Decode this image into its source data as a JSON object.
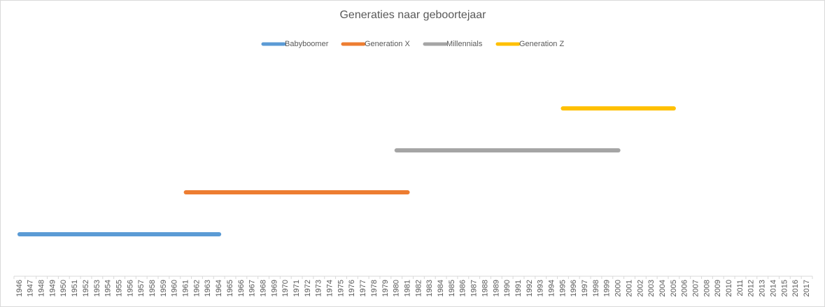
{
  "chart_data": {
    "type": "line",
    "title": "Generaties naar geboortejaar",
    "categories": [
      "1946",
      "1947",
      "1948",
      "1949",
      "1950",
      "1951",
      "1952",
      "1953",
      "1954",
      "1955",
      "1956",
      "1957",
      "1958",
      "1959",
      "1960",
      "1961",
      "1962",
      "1963",
      "1964",
      "1965",
      "1966",
      "1967",
      "1968",
      "1969",
      "1970",
      "1971",
      "1972",
      "1973",
      "1974",
      "1975",
      "1976",
      "1977",
      "1978",
      "1979",
      "1980",
      "1981",
      "1982",
      "1983",
      "1984",
      "1985",
      "1986",
      "1987",
      "1988",
      "1989",
      "1990",
      "1991",
      "1992",
      "1993",
      "1994",
      "1995",
      "1996",
      "1997",
      "1998",
      "1999",
      "2000",
      "2001",
      "2002",
      "2003",
      "2004",
      "2005",
      "2006",
      "2007",
      "2008",
      "2009",
      "2010",
      "2011",
      "2012",
      "2013",
      "2014",
      "2015",
      "2016",
      "2017"
    ],
    "series": [
      {
        "name": "Babyboomer",
        "color": "#5b9bd5",
        "values": [
          1,
          1,
          1,
          1,
          1,
          1,
          1,
          1,
          1,
          1,
          1,
          1,
          1,
          1,
          1,
          1,
          1,
          1,
          1,
          null,
          null,
          null,
          null,
          null,
          null,
          null,
          null,
          null,
          null,
          null,
          null,
          null,
          null,
          null,
          null,
          null,
          null,
          null,
          null,
          null,
          null,
          null,
          null,
          null,
          null,
          null,
          null,
          null,
          null,
          null,
          null,
          null,
          null,
          null,
          null,
          null,
          null,
          null,
          null,
          null,
          null,
          null,
          null,
          null,
          null,
          null,
          null,
          null,
          null,
          null,
          null,
          null
        ]
      },
      {
        "name": "Generation X",
        "color": "#ed7d31",
        "values": [
          null,
          null,
          null,
          null,
          null,
          null,
          null,
          null,
          null,
          null,
          null,
          null,
          null,
          null,
          null,
          2,
          2,
          2,
          2,
          2,
          2,
          2,
          2,
          2,
          2,
          2,
          2,
          2,
          2,
          2,
          2,
          2,
          2,
          2,
          2,
          2,
          null,
          null,
          null,
          null,
          null,
          null,
          null,
          null,
          null,
          null,
          null,
          null,
          null,
          null,
          null,
          null,
          null,
          null,
          null,
          null,
          null,
          null,
          null,
          null,
          null,
          null,
          null,
          null,
          null,
          null,
          null,
          null,
          null,
          null,
          null,
          null
        ]
      },
      {
        "name": "Millennials",
        "color": "#a5a5a5",
        "values": [
          null,
          null,
          null,
          null,
          null,
          null,
          null,
          null,
          null,
          null,
          null,
          null,
          null,
          null,
          null,
          null,
          null,
          null,
          null,
          null,
          null,
          null,
          null,
          null,
          null,
          null,
          null,
          null,
          null,
          null,
          null,
          null,
          null,
          null,
          3,
          3,
          3,
          3,
          3,
          3,
          3,
          3,
          3,
          3,
          3,
          3,
          3,
          3,
          3,
          3,
          3,
          3,
          3,
          3,
          3,
          null,
          null,
          null,
          null,
          null,
          null,
          null,
          null,
          null,
          null,
          null,
          null,
          null,
          null,
          null,
          null,
          null
        ]
      },
      {
        "name": "Generation Z",
        "color": "#ffc000",
        "values": [
          null,
          null,
          null,
          null,
          null,
          null,
          null,
          null,
          null,
          null,
          null,
          null,
          null,
          null,
          null,
          null,
          null,
          null,
          null,
          null,
          null,
          null,
          null,
          null,
          null,
          null,
          null,
          null,
          null,
          null,
          null,
          null,
          null,
          null,
          null,
          null,
          null,
          null,
          null,
          null,
          null,
          null,
          null,
          null,
          null,
          null,
          null,
          null,
          null,
          4,
          4,
          4,
          4,
          4,
          4,
          4,
          4,
          4,
          4,
          4,
          null,
          null,
          null,
          null,
          null,
          null,
          null,
          null,
          null,
          null,
          null,
          null
        ]
      }
    ],
    "ylim": [
      0,
      5
    ],
    "legend": "top"
  }
}
